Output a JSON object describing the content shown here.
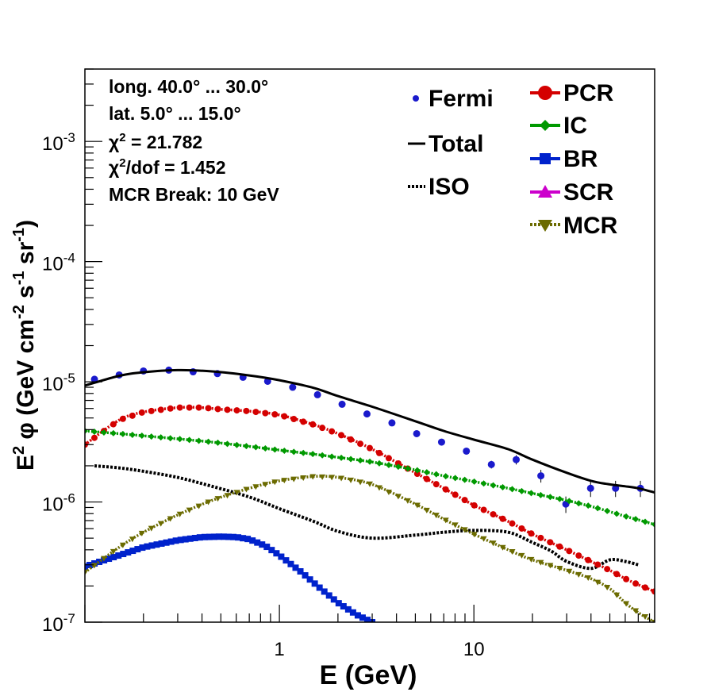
{
  "chart_data": {
    "type": "line",
    "xlabel": "E (GeV)",
    "ylabel": {
      "base": "E",
      "sup": "2",
      "rest": " φ (GeV cm",
      "sup2": "-2",
      "mid": " s",
      "sup3": "-1",
      "mid2": " sr",
      "sup4": "-1",
      "end": ")"
    },
    "x_scale": "log",
    "y_scale": "log",
    "xlim": [
      0.1,
      85
    ],
    "ylim": [
      1e-07,
      0.004
    ],
    "x_ticks": [
      {
        "value": 1,
        "label": "1"
      },
      {
        "value": 10,
        "label": "10"
      }
    ],
    "y_ticks": [
      {
        "value": 1e-07,
        "base": "10",
        "exp": "-7"
      },
      {
        "value": 1e-06,
        "base": "10",
        "exp": "-6"
      },
      {
        "value": 1e-05,
        "base": "10",
        "exp": "-5"
      },
      {
        "value": 0.0001,
        "base": "10",
        "exp": "-4"
      },
      {
        "value": 0.001,
        "base": "10",
        "exp": "-3"
      }
    ],
    "annotations": [
      {
        "text": "long. 40.0° ... 30.0°"
      },
      {
        "text": "lat. 5.0° ... 15.0°"
      },
      {
        "chi": "χ",
        "sup": "2",
        "text": " = 21.782"
      },
      {
        "chi": "χ",
        "sup": "2",
        "text": "/dof = 1.452"
      },
      {
        "text": "MCR Break: 10 GeV"
      }
    ],
    "legend_left": [
      {
        "name": "Fermi",
        "color": "#1a1acc",
        "style": "points"
      },
      {
        "name": "Total",
        "color": "#000000",
        "style": "solid"
      },
      {
        "name": "ISO",
        "color": "#000000",
        "style": "dotted"
      }
    ],
    "legend_right": [
      {
        "name": "PCR",
        "color": "#d40000",
        "marker": "circle"
      },
      {
        "name": "IC",
        "color": "#009900",
        "marker": "diamond"
      },
      {
        "name": "BR",
        "color": "#0022cc",
        "marker": "square"
      },
      {
        "name": "SCR",
        "color": "#cc00cc",
        "marker": "triangle-up"
      },
      {
        "name": "MCR",
        "color": "#6b6b00",
        "marker": "triangle-down"
      }
    ],
    "series": [
      {
        "name": "Fermi",
        "color": "#1a1acc",
        "type": "points",
        "x": [
          0.112,
          0.15,
          0.2,
          0.27,
          0.36,
          0.48,
          0.65,
          0.87,
          1.17,
          1.57,
          2.1,
          2.82,
          3.79,
          5.08,
          6.82,
          9.15,
          12.3,
          16.5,
          22.1,
          29.7,
          39.8,
          53.5,
          71.8
        ],
        "y": [
          1.05e-05,
          1.14e-05,
          1.23e-05,
          1.25e-05,
          1.21e-05,
          1.17e-05,
          1.09e-05,
          1.01e-05,
          9e-06,
          7.8e-06,
          6.5e-06,
          5.4e-06,
          4.55e-06,
          3.7e-06,
          3.15e-06,
          2.65e-06,
          2.05e-06,
          2.25e-06,
          1.65e-06,
          9.6e-07,
          1.3e-06,
          1.3e-06,
          1.3e-06
        ],
        "err": [
          3e-07,
          3e-07,
          3e-07,
          3e-07,
          3e-07,
          3e-07,
          3e-07,
          3e-07,
          3e-07,
          3e-07,
          2e-07,
          2e-07,
          1.5e-07,
          1.5e-07,
          1.5e-07,
          1.5e-07,
          1.5e-07,
          2e-07,
          2e-07,
          1.5e-07,
          2e-07,
          2e-07,
          2e-07
        ]
      },
      {
        "name": "Total",
        "color": "#000000",
        "type": "solid",
        "x": [
          0.1,
          0.15,
          0.2,
          0.3,
          0.45,
          0.7,
          1.0,
          1.5,
          2.0,
          3.0,
          5.0,
          7.0,
          10.0,
          15.0,
          20.0,
          30.0,
          40.0,
          50.0,
          60.0,
          70.0,
          85.0
        ],
        "y": [
          9.3e-06,
          1.12e-05,
          1.2e-05,
          1.25e-05,
          1.22e-05,
          1.13e-05,
          1.03e-05,
          8.9e-06,
          7.6e-06,
          6.2e-06,
          4.7e-06,
          3.9e-06,
          3.3e-06,
          2.75e-06,
          2.25e-06,
          1.75e-06,
          1.5e-06,
          1.4e-06,
          1.35e-06,
          1.3e-06,
          1.2e-06
        ]
      },
      {
        "name": "ISO",
        "color": "#000000",
        "type": "dotted",
        "x": [
          0.112,
          0.15,
          0.2,
          0.3,
          0.45,
          0.7,
          1.0,
          1.5,
          2.0,
          3.0,
          5.0,
          7.0,
          10.0,
          15.0,
          20.0,
          25.0,
          30.0,
          40.0,
          50.0,
          60.0,
          70.0
        ],
        "y": [
          2e-06,
          1.92e-06,
          1.8e-06,
          1.6e-06,
          1.35e-06,
          1.1e-06,
          8.8e-07,
          6.9e-07,
          5.7e-07,
          5e-07,
          5.3e-07,
          5.6e-07,
          5.8e-07,
          5.6e-07,
          4.6e-07,
          3.9e-07,
          3.2e-07,
          2.8e-07,
          3.3e-07,
          3.2e-07,
          3e-07
        ]
      },
      {
        "name": "PCR",
        "color": "#d40000",
        "type": "marker",
        "marker": "circle",
        "x": [
          0.1,
          0.15,
          0.2,
          0.3,
          0.4,
          0.5,
          0.7,
          1.0,
          1.5,
          2.0,
          3.0,
          5.0,
          7.0,
          10.0,
          15.0,
          20.0,
          30.0,
          40.0,
          50.0,
          60.0,
          70.0,
          85.0
        ],
        "y": [
          3e-06,
          4.8e-06,
          5.6e-06,
          6.1e-06,
          6.1e-06,
          5.9e-06,
          5.7e-06,
          5.3e-06,
          4.4e-06,
          3.7e-06,
          2.75e-06,
          1.75e-06,
          1.3e-06,
          9.4e-07,
          6.9e-07,
          5.4e-07,
          4e-07,
          3.2e-07,
          2.7e-07,
          2.3e-07,
          2.05e-07,
          1.8e-07
        ]
      },
      {
        "name": "IC",
        "color": "#009900",
        "type": "marker",
        "marker": "diamond",
        "x": [
          0.1,
          0.15,
          0.2,
          0.3,
          0.45,
          0.7,
          1.0,
          1.5,
          2.0,
          3.0,
          5.0,
          7.0,
          10.0,
          15.0,
          20.0,
          30.0,
          40.0,
          50.0,
          60.0,
          70.0,
          85.0
        ],
        "y": [
          3.9e-06,
          3.7e-06,
          3.55e-06,
          3.35e-06,
          3.15e-06,
          2.9e-06,
          2.7e-06,
          2.5e-06,
          2.35e-06,
          2.15e-06,
          1.85e-06,
          1.65e-06,
          1.48e-06,
          1.3e-06,
          1.18e-06,
          1.03e-06,
          9.2e-07,
          8.3e-07,
          7.6e-07,
          7.1e-07,
          6.5e-07
        ]
      },
      {
        "name": "BR",
        "color": "#0022cc",
        "type": "marker",
        "marker": "square",
        "x": [
          0.1,
          0.15,
          0.2,
          0.3,
          0.4,
          0.5,
          0.6,
          0.7,
          0.85,
          1.0,
          1.3,
          1.6,
          2.0,
          2.5,
          3.0
        ],
        "y": [
          2.9e-07,
          3.6e-07,
          4.2e-07,
          4.8e-07,
          5.1e-07,
          5.15e-07,
          5.1e-07,
          4.9e-07,
          4.3e-07,
          3.6e-07,
          2.6e-07,
          1.95e-07,
          1.45e-07,
          1.15e-07,
          1e-07
        ]
      },
      {
        "name": "MCR",
        "color": "#6b6b00",
        "type": "marker",
        "marker": "triangle-down",
        "x": [
          0.1,
          0.15,
          0.2,
          0.3,
          0.45,
          0.7,
          1.0,
          1.5,
          2.0,
          3.0,
          5.0,
          7.0,
          10.0,
          15.0,
          20.0,
          30.0,
          40.0,
          50.0,
          60.0,
          70.0,
          85.0
        ],
        "y": [
          2.6e-07,
          4.2e-07,
          5.6e-07,
          7.8e-07,
          1.03e-06,
          1.3e-06,
          1.5e-06,
          1.63e-06,
          1.6e-06,
          1.4e-06,
          9.6e-07,
          7.2e-07,
          5.4e-07,
          4e-07,
          3.3e-07,
          2.7e-07,
          2.3e-07,
          1.9e-07,
          1.45e-07,
          1.2e-07,
          1e-07
        ]
      }
    ]
  }
}
